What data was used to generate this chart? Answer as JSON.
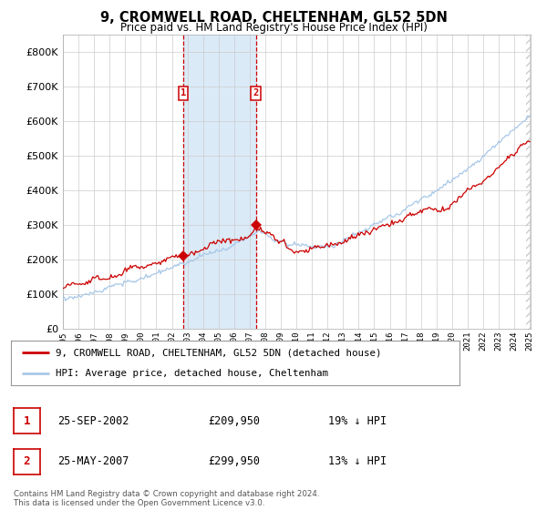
{
  "title": "9, CROMWELL ROAD, CHELTENHAM, GL52 5DN",
  "subtitle": "Price paid vs. HM Land Registry's House Price Index (HPI)",
  "red_label": "9, CROMWELL ROAD, CHELTENHAM, GL52 5DN (detached house)",
  "blue_label": "HPI: Average price, detached house, Cheltenham",
  "transaction1_date": "25-SEP-2002",
  "transaction1_price": 209950,
  "transaction1_pct": "19% ↓ HPI",
  "transaction2_date": "25-MAY-2007",
  "transaction2_price": 299950,
  "transaction2_pct": "13% ↓ HPI",
  "footnote": "Contains HM Land Registry data © Crown copyright and database right 2024.\nThis data is licensed under the Open Government Licence v3.0.",
  "ylim_max": 850000,
  "start_year": 1995,
  "end_year": 2025,
  "t1_year": 2002.73,
  "t2_year": 2007.39,
  "hpi_color": "#a8c8e8",
  "price_color": "#cc0000",
  "bg_color": "#ffffff",
  "grid_color": "#cccccc",
  "shaded_color": "#dbeaf7",
  "hatch_color": "#cccccc"
}
